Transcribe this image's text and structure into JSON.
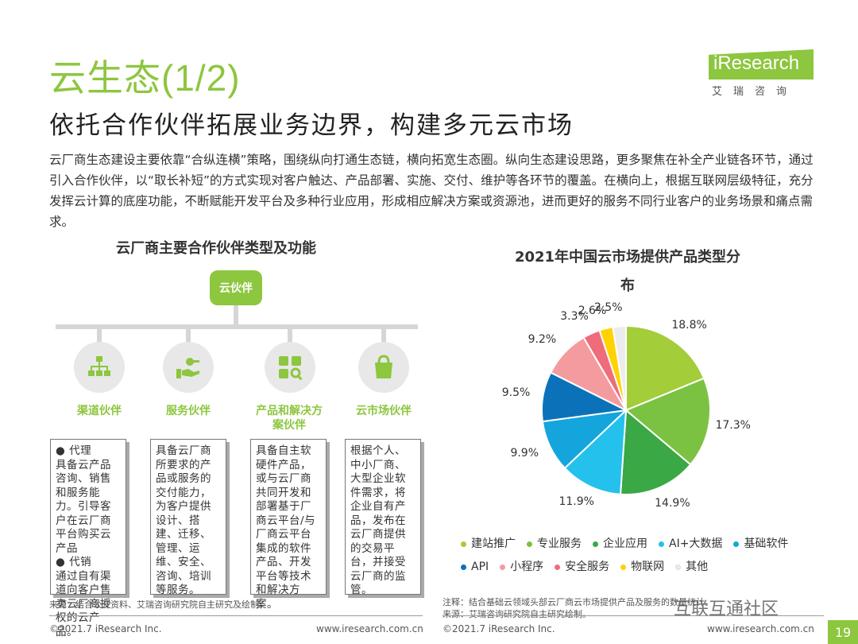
{
  "header": {
    "title": "云生态(1/2)",
    "subtitle": "依托合作伙伴拓展业务边界，构建多元云市场",
    "logo_text": "iResearch",
    "logo_cn": "艾瑞咨询"
  },
  "intro": "云厂商生态建设主要依靠“合纵连横”策略，围绕纵向打通生态链，横向拓宽生态圈。纵向生态建设思路，更多聚焦在补全产业链各环节，通过引入合作伙伴，以“取长补短”的方式实现对客户触达、产品部署、实施、交付、维护等各环节的覆盖。在横向上，根据互联网层级特征，充分发挥云计算的底座功能，不断赋能开发平台及多种行业应用，形成相应解决方案或资源池，进而更好的服务不同行业客户的业务场景和痛点需求。",
  "diagram": {
    "title": "云厂商主要合作伙伴类型及功能",
    "root": "云伙伴",
    "categories": [
      {
        "name": "渠道伙伴",
        "text": "● 代理\n具备云产品咨询、销售和服务能力。引导客户在云厂商平台购买云产品\n● 代销\n通过自有渠道向客户售卖云厂商授权的云产品。"
      },
      {
        "name": "服务伙伴",
        "text": "具备云厂商所要求的产品或服务的交付能力，为客户提供设计、搭建、迁移、管理、运维、安全、咨询、培训等服务。"
      },
      {
        "name": "产品和解决方案伙伴",
        "text": "具备自主软硬件产品，或与云厂商共同开发和部署基于厂商云平台/与厂商云平台集成的软件产品、开发平台等技术和解决方案。"
      },
      {
        "name": "云市场伙伴",
        "text": "根据个人、中小厂商、大型企业软件需求，将企业自有产品，发布在云厂商提供的交易平台，并接受云厂商的监管。"
      }
    ]
  },
  "chart_data": {
    "type": "pie",
    "title": "2021年中国云市场提供产品类型分布",
    "slices": [
      {
        "name": "建站推广",
        "value": 18.8,
        "label": "18.8%",
        "color": "#a3cd39"
      },
      {
        "name": "专业服务",
        "value": 17.3,
        "label": "17.3%",
        "color": "#7cc242"
      },
      {
        "name": "企业应用",
        "value": 14.9,
        "label": "14.9%",
        "color": "#3aa844"
      },
      {
        "name": "AI+大数据",
        "value": 11.9,
        "label": "11.9%",
        "color": "#23c1ec"
      },
      {
        "name": "基础软件",
        "value": 9.9,
        "label": "9.9%",
        "color": "#14a5dc"
      },
      {
        "name": "API",
        "value": 9.5,
        "label": "9.5%",
        "color": "#0b72ba"
      },
      {
        "name": "小程序",
        "value": 9.2,
        "label": "9.2%",
        "color": "#f49ba0"
      },
      {
        "name": "安全服务",
        "value": 3.3,
        "label": "3.3%",
        "color": "#ee6d7b"
      },
      {
        "name": "物联网",
        "value": 2.6,
        "label": "2.6%",
        "color": "#ffd200"
      },
      {
        "name": "其他",
        "value": 2.5,
        "label": "2.5%",
        "color": "#ececec"
      }
    ],
    "legend_position": "bottom"
  },
  "sources": {
    "left": "来源：结合公开资料、艾瑞咨询研究院自主研究及绘制。",
    "right_note": "注释：结合基础云领域头部云厂商云市场提供产品及服务的数量统计。",
    "right_source": "来源：艾瑞咨询研究院自主研究绘制。"
  },
  "footer": {
    "copyright_left": "©2021.7 iResearch Inc.",
    "url_left": "www.iresearch.com.cn",
    "copyright_right": "©2021.7 iResearch Inc.",
    "url_right": "www.iresearch.com.cn",
    "page": "19",
    "watermark": "互联互通社区"
  }
}
